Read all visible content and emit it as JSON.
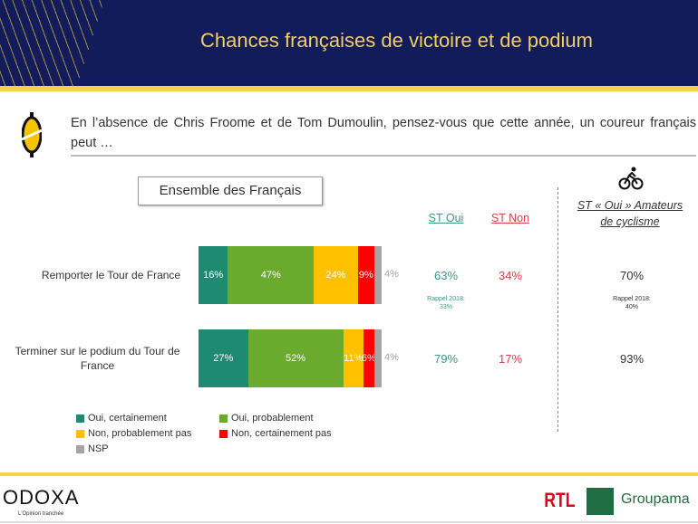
{
  "header": {
    "title": "Chances françaises de victoire et de podium"
  },
  "question": "En l’absence de Chris Froome et de Tom Dumoulin, pensez-vous que cette année, un coureur français peut …",
  "panel_label": "Ensemble des Français",
  "columns": {
    "st_oui": "ST Oui",
    "st_non": "ST Non",
    "amateurs_line1": "ST « Oui » Amateurs",
    "amateurs_line2": "de cyclisme"
  },
  "colors": {
    "oui_cert": "#1e8a72",
    "oui_prob": "#6aaa2c",
    "non_prob": "#ffc000",
    "non_cert": "#ff0000",
    "nsp": "#a5a5a5",
    "st_oui": "#3a9a84",
    "st_non": "#d9404a"
  },
  "chart_data": {
    "type": "bar",
    "orientation": "horizontal",
    "stacked": true,
    "categories": [
      "Remporter le Tour de France",
      "Terminer sur le podium du Tour de France"
    ],
    "series": [
      {
        "name": "Oui, certainement",
        "values": [
          16,
          27
        ]
      },
      {
        "name": "Oui, probablement",
        "values": [
          47,
          52
        ]
      },
      {
        "name": "Non, probablement pas",
        "values": [
          24,
          11
        ]
      },
      {
        "name": "Non, certainement pas",
        "values": [
          9,
          6
        ]
      },
      {
        "name": "NSP",
        "values": [
          4,
          4
        ]
      }
    ],
    "labels": [
      [
        "16%",
        "47%",
        "24%",
        "9%",
        "4%"
      ],
      [
        "27%",
        "52%",
        "11%",
        "6%",
        "4%"
      ]
    ],
    "legend_position": "bottom-left"
  },
  "summary": [
    {
      "st_oui": "63%",
      "st_non": "34%",
      "rappel_title": "Rappel 2018:",
      "rappel_oui": "33%",
      "amateurs": "70%",
      "rappel_amateurs": "40%"
    },
    {
      "st_oui": "79%",
      "st_non": "17%",
      "amateurs": "93%"
    }
  ],
  "footer": {
    "brand": "ODOXA",
    "tagline": "L'Opinion tranchée",
    "partner1": "RTL",
    "partner2": "Groupama"
  }
}
